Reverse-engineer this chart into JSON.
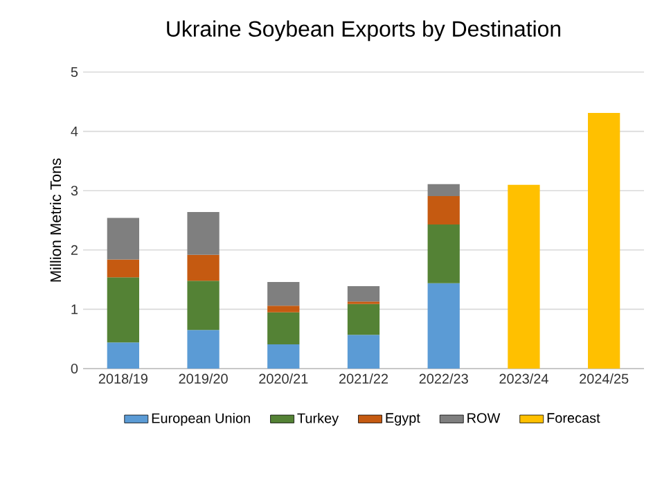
{
  "chart_data": {
    "type": "bar",
    "title": "Ukraine Soybean Exports by Destination",
    "ylabel": "Million Metric Tons",
    "categories": [
      "2018/19",
      "2019/20",
      "2020/21",
      "2021/22",
      "2022/23",
      "2023/24",
      "2024/25"
    ],
    "stacked": true,
    "series": [
      {
        "name": "European Union",
        "color": "#5b9bd5",
        "values": [
          0.44,
          0.65,
          0.41,
          0.57,
          1.44,
          null,
          null
        ]
      },
      {
        "name": "Turkey",
        "color": "#548235",
        "values": [
          1.1,
          0.83,
          0.54,
          0.52,
          0.99,
          null,
          null
        ]
      },
      {
        "name": "Egypt",
        "color": "#c55a11",
        "values": [
          0.3,
          0.44,
          0.11,
          0.04,
          0.48,
          null,
          null
        ]
      },
      {
        "name": "ROW",
        "color": "#7f7f7f",
        "values": [
          0.7,
          0.72,
          0.4,
          0.26,
          0.2,
          null,
          null
        ]
      },
      {
        "name": "Forecast",
        "color": "#ffc000",
        "values": [
          null,
          null,
          null,
          null,
          null,
          3.1,
          4.31
        ]
      }
    ],
    "ylim": [
      0,
      5
    ],
    "yticks": [
      0,
      1,
      2,
      3,
      4,
      5
    ],
    "grid": "y",
    "legend": "bottom"
  }
}
